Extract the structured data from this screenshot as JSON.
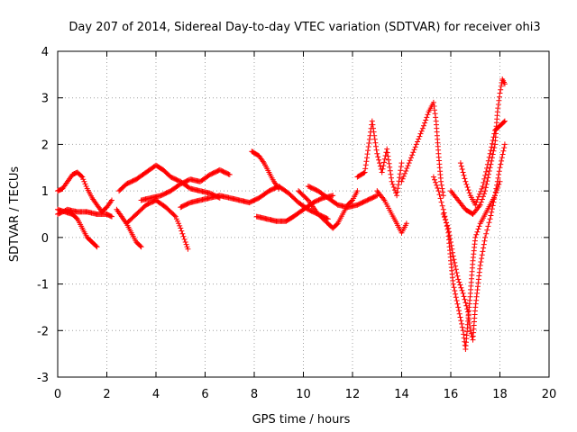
{
  "chart_data": {
    "type": "scatter",
    "title": "Day 207 of 2014, Sidereal Day-to-day VTEC variation (SDTVAR) for receiver ohi3",
    "xlabel": "GPS time / hours",
    "ylabel": "SDTVAR / TECUs",
    "xlim": [
      0,
      20
    ],
    "ylim": [
      -3,
      4
    ],
    "xticks": [
      0,
      2,
      4,
      6,
      8,
      10,
      12,
      14,
      16,
      18,
      20
    ],
    "yticks": [
      -3,
      -2,
      -1,
      0,
      1,
      2,
      3,
      4
    ],
    "grid": true,
    "marker": "+",
    "color": "#ff0000",
    "series": [
      {
        "name": "trace-a",
        "points": [
          [
            0.0,
            1.0
          ],
          [
            0.2,
            1.05
          ],
          [
            0.4,
            1.2
          ],
          [
            0.6,
            1.35
          ],
          [
            0.8,
            1.4
          ],
          [
            1.0,
            1.3
          ],
          [
            1.2,
            1.05
          ],
          [
            1.4,
            0.85
          ],
          [
            1.6,
            0.7
          ],
          [
            1.8,
            0.55
          ],
          [
            2.0,
            0.65
          ],
          [
            2.2,
            0.8
          ]
        ]
      },
      {
        "name": "trace-b",
        "points": [
          [
            0.0,
            0.6
          ],
          [
            0.3,
            0.55
          ],
          [
            0.6,
            0.5
          ],
          [
            0.8,
            0.4
          ],
          [
            1.0,
            0.2
          ],
          [
            1.2,
            0.0
          ],
          [
            1.4,
            -0.1
          ],
          [
            1.6,
            -0.2
          ]
        ]
      },
      {
        "name": "trace-c",
        "points": [
          [
            0.0,
            0.5
          ],
          [
            0.4,
            0.6
          ],
          [
            0.8,
            0.55
          ],
          [
            1.2,
            0.55
          ],
          [
            1.6,
            0.5
          ],
          [
            2.0,
            0.5
          ],
          [
            2.2,
            0.45
          ]
        ]
      },
      {
        "name": "trace-d",
        "points": [
          [
            2.5,
            1.0
          ],
          [
            2.8,
            1.15
          ],
          [
            3.2,
            1.25
          ],
          [
            3.6,
            1.4
          ],
          [
            4.0,
            1.55
          ],
          [
            4.3,
            1.45
          ],
          [
            4.6,
            1.3
          ],
          [
            5.0,
            1.2
          ],
          [
            5.4,
            1.05
          ],
          [
            5.8,
            1.0
          ],
          [
            6.2,
            0.95
          ],
          [
            6.6,
            0.85
          ]
        ]
      },
      {
        "name": "trace-e",
        "points": [
          [
            2.4,
            0.6
          ],
          [
            2.6,
            0.45
          ],
          [
            2.8,
            0.3
          ],
          [
            3.0,
            0.1
          ],
          [
            3.2,
            -0.1
          ],
          [
            3.4,
            -0.2
          ]
        ]
      },
      {
        "name": "trace-f",
        "points": [
          [
            2.8,
            0.3
          ],
          [
            3.2,
            0.5
          ],
          [
            3.6,
            0.7
          ],
          [
            4.0,
            0.8
          ],
          [
            4.4,
            0.65
          ],
          [
            4.8,
            0.45
          ],
          [
            5.0,
            0.2
          ],
          [
            5.2,
            -0.1
          ],
          [
            5.3,
            -0.25
          ]
        ]
      },
      {
        "name": "trace-g",
        "points": [
          [
            3.4,
            0.8
          ],
          [
            3.8,
            0.85
          ],
          [
            4.2,
            0.9
          ],
          [
            4.6,
            1.0
          ],
          [
            5.0,
            1.15
          ],
          [
            5.4,
            1.25
          ],
          [
            5.8,
            1.2
          ],
          [
            6.2,
            1.35
          ],
          [
            6.6,
            1.45
          ],
          [
            7.0,
            1.35
          ]
        ]
      },
      {
        "name": "trace-h",
        "points": [
          [
            5.0,
            0.65
          ],
          [
            5.4,
            0.75
          ],
          [
            5.8,
            0.8
          ],
          [
            6.2,
            0.85
          ],
          [
            6.6,
            0.9
          ],
          [
            7.0,
            0.85
          ],
          [
            7.4,
            0.8
          ],
          [
            7.8,
            0.75
          ],
          [
            8.2,
            0.85
          ],
          [
            8.6,
            1.0
          ],
          [
            9.0,
            1.1
          ],
          [
            9.4,
            0.95
          ],
          [
            9.8,
            0.75
          ],
          [
            10.2,
            0.6
          ],
          [
            10.6,
            0.5
          ],
          [
            11.0,
            0.4
          ]
        ]
      },
      {
        "name": "trace-i",
        "points": [
          [
            7.9,
            1.85
          ],
          [
            8.2,
            1.75
          ],
          [
            8.4,
            1.6
          ],
          [
            8.6,
            1.4
          ],
          [
            8.8,
            1.2
          ],
          [
            9.0,
            1.05
          ]
        ]
      },
      {
        "name": "trace-j",
        "points": [
          [
            8.1,
            0.45
          ],
          [
            8.5,
            0.4
          ],
          [
            8.9,
            0.35
          ],
          [
            9.3,
            0.35
          ],
          [
            9.6,
            0.45
          ],
          [
            10.0,
            0.6
          ],
          [
            10.4,
            0.75
          ],
          [
            10.8,
            0.85
          ],
          [
            11.2,
            0.9
          ]
        ]
      },
      {
        "name": "trace-k",
        "points": [
          [
            9.8,
            1.0
          ],
          [
            10.2,
            0.8
          ],
          [
            10.6,
            0.5
          ],
          [
            11.0,
            0.3
          ],
          [
            11.2,
            0.2
          ],
          [
            11.4,
            0.3
          ],
          [
            11.6,
            0.5
          ],
          [
            11.8,
            0.7
          ],
          [
            12.0,
            0.8
          ],
          [
            12.2,
            1.0
          ]
        ]
      },
      {
        "name": "trace-l",
        "points": [
          [
            10.2,
            1.1
          ],
          [
            10.6,
            1.0
          ],
          [
            11.0,
            0.85
          ],
          [
            11.4,
            0.7
          ],
          [
            11.8,
            0.65
          ],
          [
            12.2,
            0.7
          ],
          [
            12.6,
            0.8
          ],
          [
            13.0,
            0.9
          ]
        ]
      },
      {
        "name": "trace-m",
        "points": [
          [
            12.2,
            1.3
          ],
          [
            12.5,
            1.4
          ],
          [
            12.8,
            2.5
          ],
          [
            13.0,
            1.8
          ],
          [
            13.2,
            1.4
          ],
          [
            13.4,
            1.9
          ],
          [
            13.6,
            1.2
          ],
          [
            13.8,
            0.9
          ],
          [
            14.0,
            1.6
          ]
        ]
      },
      {
        "name": "trace-n",
        "points": [
          [
            13.0,
            1.0
          ],
          [
            13.3,
            0.8
          ],
          [
            13.6,
            0.5
          ],
          [
            13.8,
            0.3
          ],
          [
            14.0,
            0.1
          ],
          [
            14.2,
            0.3
          ]
        ]
      },
      {
        "name": "trace-o",
        "points": [
          [
            14.0,
            1.2
          ],
          [
            14.3,
            1.6
          ],
          [
            14.6,
            2.0
          ],
          [
            14.9,
            2.4
          ],
          [
            15.1,
            2.7
          ],
          [
            15.3,
            2.9
          ],
          [
            15.4,
            2.5
          ],
          [
            15.5,
            1.8
          ],
          [
            15.6,
            1.2
          ],
          [
            15.7,
            0.9
          ]
        ]
      },
      {
        "name": "trace-p",
        "points": [
          [
            15.3,
            1.3
          ],
          [
            15.5,
            1.0
          ],
          [
            15.7,
            0.6
          ],
          [
            15.9,
            0.1
          ],
          [
            16.0,
            -0.5
          ],
          [
            16.1,
            -1.0
          ],
          [
            16.3,
            -1.5
          ],
          [
            16.5,
            -2.0
          ],
          [
            16.6,
            -2.4
          ],
          [
            16.7,
            -1.8
          ],
          [
            16.8,
            -1.2
          ],
          [
            16.9,
            -0.5
          ],
          [
            17.0,
            0.0
          ],
          [
            17.2,
            0.3
          ],
          [
            17.4,
            0.5
          ],
          [
            17.6,
            0.7
          ],
          [
            17.8,
            0.9
          ],
          [
            18.0,
            1.2
          ]
        ]
      },
      {
        "name": "trace-q",
        "points": [
          [
            15.7,
            0.5
          ],
          [
            15.9,
            0.2
          ],
          [
            16.1,
            -0.4
          ],
          [
            16.3,
            -0.9
          ],
          [
            16.5,
            -1.2
          ],
          [
            16.7,
            -1.6
          ],
          [
            16.8,
            -2.0
          ],
          [
            16.9,
            -2.2
          ],
          [
            17.0,
            -1.5
          ],
          [
            17.2,
            -0.6
          ],
          [
            17.4,
            0.0
          ],
          [
            17.6,
            0.4
          ],
          [
            17.8,
            0.9
          ],
          [
            18.0,
            1.5
          ],
          [
            18.2,
            2.0
          ]
        ]
      },
      {
        "name": "trace-r",
        "points": [
          [
            16.0,
            1.0
          ],
          [
            16.3,
            0.8
          ],
          [
            16.6,
            0.6
          ],
          [
            16.9,
            0.5
          ],
          [
            17.2,
            0.7
          ],
          [
            17.4,
            1.0
          ],
          [
            17.6,
            1.5
          ],
          [
            17.8,
            2.0
          ],
          [
            17.9,
            2.7
          ],
          [
            18.0,
            3.1
          ],
          [
            18.1,
            3.4
          ],
          [
            18.2,
            3.3
          ]
        ]
      },
      {
        "name": "trace-s",
        "points": [
          [
            16.4,
            1.6
          ],
          [
            16.6,
            1.2
          ],
          [
            16.8,
            0.9
          ],
          [
            17.0,
            0.7
          ],
          [
            17.3,
            1.1
          ],
          [
            17.6,
            1.8
          ],
          [
            17.8,
            2.3
          ],
          [
            18.0,
            2.4
          ],
          [
            18.2,
            2.5
          ]
        ]
      }
    ]
  }
}
